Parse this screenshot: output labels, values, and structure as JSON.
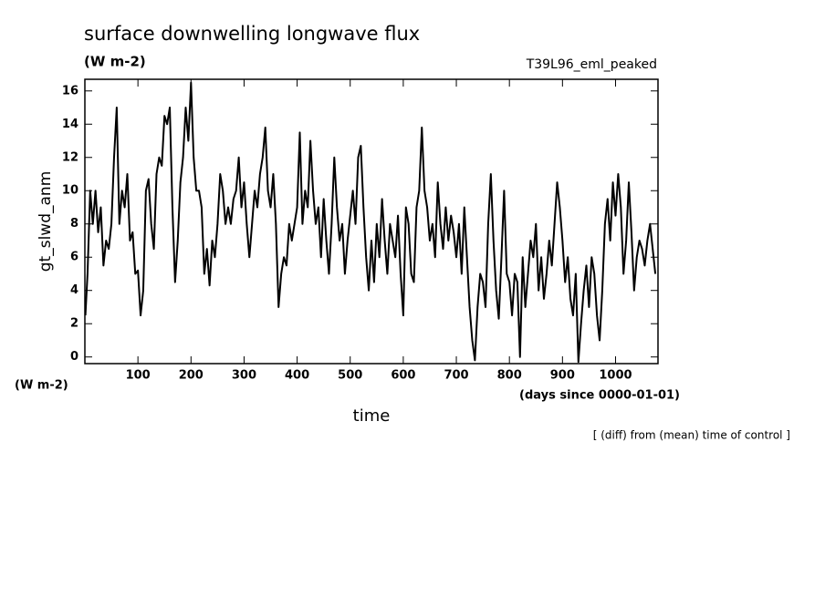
{
  "chart_data": {
    "type": "line",
    "title": "surface downwelling longwave flux",
    "units": "(W m-2)",
    "run_name": "T39L96_eml_peaked",
    "y_label": "gt_slwd_anm",
    "y_units": "(W m-2)",
    "x_units": "(days since 0000-01-01)",
    "x_label": "time",
    "note": "[ (diff) from (mean) time of control ]",
    "xlim": [
      0,
      1080
    ],
    "ylim": [
      -0.4,
      16.7
    ],
    "xticks": [
      100,
      200,
      300,
      400,
      500,
      600,
      700,
      800,
      900,
      1000
    ],
    "yticks": [
      0,
      2,
      4,
      6,
      8,
      10,
      12,
      14,
      16
    ],
    "x": [
      1,
      5,
      10,
      15,
      20,
      25,
      30,
      35,
      40,
      45,
      50,
      55,
      60,
      65,
      70,
      75,
      80,
      85,
      90,
      95,
      100,
      105,
      110,
      115,
      120,
      125,
      130,
      135,
      140,
      145,
      150,
      155,
      160,
      165,
      170,
      175,
      180,
      185,
      190,
      195,
      200,
      205,
      210,
      215,
      220,
      225,
      230,
      235,
      240,
      245,
      250,
      255,
      260,
      265,
      270,
      275,
      280,
      285,
      290,
      295,
      300,
      305,
      310,
      315,
      320,
      325,
      330,
      335,
      340,
      345,
      350,
      355,
      360,
      365,
      370,
      375,
      380,
      385,
      390,
      395,
      400,
      405,
      410,
      415,
      420,
      425,
      430,
      435,
      440,
      445,
      450,
      455,
      460,
      465,
      470,
      475,
      480,
      485,
      490,
      495,
      500,
      505,
      510,
      515,
      520,
      525,
      530,
      535,
      540,
      545,
      550,
      555,
      560,
      565,
      570,
      575,
      580,
      585,
      590,
      595,
      600,
      605,
      610,
      615,
      620,
      625,
      630,
      635,
      640,
      645,
      650,
      655,
      660,
      665,
      670,
      675,
      680,
      685,
      690,
      695,
      700,
      705,
      710,
      715,
      720,
      725,
      730,
      735,
      740,
      745,
      750,
      755,
      760,
      765,
      770,
      775,
      780,
      785,
      790,
      795,
      800,
      805,
      810,
      815,
      820,
      825,
      830,
      835,
      840,
      845,
      850,
      855,
      860,
      865,
      870,
      875,
      880,
      885,
      890,
      895,
      900,
      905,
      910,
      915,
      920,
      925,
      930,
      935,
      940,
      945,
      950,
      955,
      960,
      965,
      970,
      975,
      980,
      985,
      990,
      995,
      1000,
      1005,
      1010,
      1015,
      1020,
      1025,
      1030,
      1035,
      1040,
      1045,
      1050,
      1055,
      1060,
      1065,
      1070,
      1075
    ],
    "series": [
      {
        "color": "#000000",
        "values": [
          2.5,
          5,
          10,
          8,
          10,
          7.5,
          9,
          5.5,
          7,
          6.5,
          8,
          12,
          15,
          8,
          10,
          9,
          11,
          7,
          7.5,
          5,
          5.2,
          2.5,
          4,
          10,
          10.7,
          8,
          6.5,
          11,
          12,
          11.5,
          14.5,
          14,
          15,
          9,
          4.5,
          7,
          10.5,
          12,
          15,
          13,
          16.5,
          12,
          10,
          10,
          9,
          5,
          6.5,
          4.3,
          7,
          6,
          8,
          11,
          10,
          8,
          9,
          8,
          9.5,
          10,
          12,
          9,
          10.5,
          8,
          6,
          8,
          10,
          9,
          11,
          12,
          13.8,
          10,
          9,
          11,
          8,
          3,
          5,
          6,
          5.5,
          8,
          7,
          8,
          9,
          13.5,
          8,
          10,
          9,
          13,
          10,
          8,
          9,
          6,
          9.5,
          7,
          5,
          8,
          12,
          9,
          7,
          8,
          5,
          7,
          8.5,
          10,
          8,
          12,
          12.7,
          9,
          6,
          4,
          7,
          4.5,
          8,
          6,
          9.5,
          7,
          5,
          8,
          7,
          6,
          8.5,
          5,
          2.5,
          9,
          8,
          5,
          4.5,
          9,
          10,
          13.8,
          10,
          9,
          7,
          8,
          6,
          10.5,
          8,
          6.5,
          9,
          7,
          8.5,
          7.5,
          6,
          8,
          5,
          9,
          6,
          3,
          1,
          -0.2,
          3,
          5,
          4.5,
          3,
          8,
          11,
          7,
          4,
          2.3,
          6,
          10,
          5,
          4.5,
          2.5,
          5,
          4.5,
          0,
          6,
          3,
          5,
          7,
          6,
          8,
          4,
          6,
          3.5,
          5,
          7,
          5.5,
          8,
          10.5,
          9,
          7,
          4.5,
          6,
          3.5,
          2.5,
          5,
          -0.3,
          2,
          4,
          5.5,
          3,
          6,
          5,
          2.5,
          1,
          4,
          8,
          9.5,
          7,
          10.5,
          8.5,
          11,
          9,
          5,
          7,
          10.5,
          7.5,
          4,
          6,
          7,
          6.5,
          5.5,
          7,
          8,
          6.5,
          5
        ]
      }
    ]
  }
}
